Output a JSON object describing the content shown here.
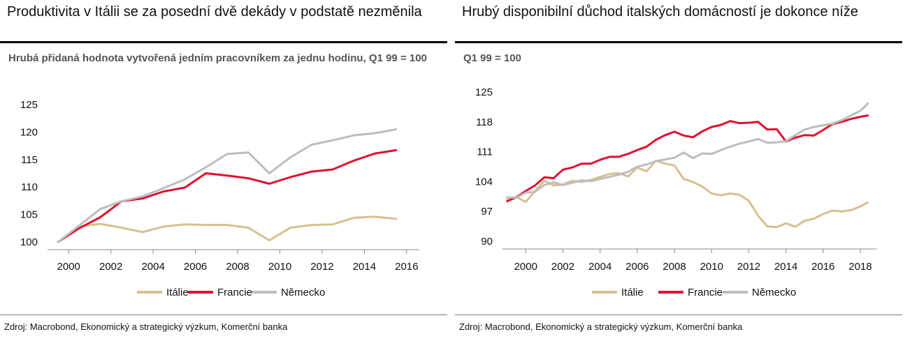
{
  "panels": [
    {
      "title": "Produktivita v Itálii se za posední dvě dekády v podstatě nezměnila",
      "subtitle": "Hrubá přidaná hodnota vytvořená jedním pracovníkem za jednu hodinu, Q1 99 = 100",
      "source": "Zdroj: Macrobond, Ekonomický a strategický výzkum, Komerční banka"
    },
    {
      "title": "Hrubý disponibilní důchod italských domácností je dokonce níže",
      "subtitle": "Q1 99 = 100",
      "source": "Zdroj: Macrobond, Ekonomický a strategický výzkum, Komerční banka"
    }
  ],
  "colors": {
    "italie": "#d6c08f",
    "francie": "#e0102f",
    "nemecko": "#bdbdbd"
  },
  "chart_data": [
    {
      "type": "line",
      "ylim": [
        100,
        125
      ],
      "xlim": [
        1999,
        2016.6
      ],
      "yticks": [
        100,
        105,
        110,
        115,
        120,
        125
      ],
      "xticks": [
        2000,
        2002,
        2004,
        2006,
        2008,
        2010,
        2012,
        2014,
        2016
      ],
      "legend_position": "bottom",
      "series": [
        {
          "name": "Itálie",
          "color": "#d6c08f",
          "x": [
            1999.5,
            2000.5,
            2001.5,
            2002.5,
            2003.5,
            2004.5,
            2005.5,
            2006.5,
            2007.5,
            2008.5,
            2009.5,
            2010.5,
            2011.5,
            2012.5,
            2013.5,
            2014.5,
            2015.5
          ],
          "y": [
            100,
            102.8,
            103.3,
            102.6,
            101.8,
            102.8,
            103.2,
            103.1,
            103.1,
            102.6,
            100.3,
            102.6,
            103.1,
            103.2,
            104.4,
            104.6,
            104.2
          ]
        },
        {
          "name": "Francie",
          "color": "#e0102f",
          "x": [
            1999.5,
            2000.5,
            2001.5,
            2002.5,
            2003.5,
            2004.5,
            2005.5,
            2006.5,
            2007.5,
            2008.5,
            2009.5,
            2010.5,
            2011.5,
            2012.5,
            2013.5,
            2014.5,
            2015.5
          ],
          "y": [
            100,
            102.5,
            104.5,
            107.4,
            107.9,
            109.2,
            109.9,
            112.5,
            112.1,
            111.6,
            110.6,
            111.8,
            112.8,
            113.2,
            114.8,
            116.1,
            116.7
          ]
        },
        {
          "name": "Německo",
          "color": "#bdbdbd",
          "x": [
            1999.5,
            2000.5,
            2001.5,
            2002.5,
            2003.5,
            2004.5,
            2005.5,
            2006.5,
            2007.5,
            2008.5,
            2009.5,
            2010.5,
            2011.5,
            2012.5,
            2013.5,
            2014.5,
            2015.5
          ],
          "y": [
            100,
            103.0,
            106.0,
            107.4,
            108.3,
            109.8,
            111.4,
            113.6,
            116.0,
            116.3,
            112.5,
            115.4,
            117.7,
            118.5,
            119.4,
            119.8,
            120.5
          ]
        }
      ]
    },
    {
      "type": "line",
      "ylim": [
        90,
        125
      ],
      "xlim": [
        1998.75,
        2018.9
      ],
      "yticks": [
        90,
        97,
        104,
        111,
        118,
        125
      ],
      "xticks": [
        2000,
        2002,
        2004,
        2006,
        2008,
        2010,
        2012,
        2014,
        2016,
        2018
      ],
      "legend_position": "bottom",
      "series": [
        {
          "name": "Itálie",
          "color": "#d6c08f",
          "x": [
            1999.0,
            1999.5,
            2000.0,
            2000.5,
            2001.0,
            2001.5,
            2002.0,
            2002.5,
            2003.0,
            2003.5,
            2004.0,
            2004.5,
            2005.0,
            2005.5,
            2006.0,
            2006.5,
            2007.0,
            2007.5,
            2008.0,
            2008.5,
            2009.0,
            2009.5,
            2010.0,
            2010.5,
            2011.0,
            2011.5,
            2012.0,
            2012.5,
            2013.0,
            2013.5,
            2014.0,
            2014.5,
            2015.0,
            2015.5,
            2016.0,
            2016.5,
            2017.0,
            2017.5,
            2018.0,
            2018.4
          ],
          "y": [
            100.0,
            100.4,
            99.2,
            101.8,
            104.2,
            103.1,
            103.3,
            104.2,
            103.9,
            104.4,
            105.1,
            105.8,
            106.0,
            105.2,
            107.3,
            106.4,
            108.9,
            108.2,
            107.8,
            104.6,
            103.9,
            102.8,
            101.2,
            100.8,
            101.2,
            100.9,
            99.5,
            96.0,
            93.5,
            93.3,
            94.2,
            93.4,
            94.8,
            95.3,
            96.4,
            97.2,
            97.0,
            97.3,
            98.2,
            99.1
          ]
        },
        {
          "name": "Francie",
          "color": "#e0102f",
          "x": [
            1999.0,
            1999.5,
            2000.0,
            2000.5,
            2001.0,
            2001.5,
            2002.0,
            2002.5,
            2003.0,
            2003.5,
            2004.0,
            2004.5,
            2005.0,
            2005.5,
            2006.0,
            2006.5,
            2007.0,
            2007.5,
            2008.0,
            2008.5,
            2009.0,
            2009.5,
            2010.0,
            2010.5,
            2011.0,
            2011.5,
            2012.0,
            2012.5,
            2013.0,
            2013.5,
            2014.0,
            2014.5,
            2015.0,
            2015.5,
            2016.0,
            2016.5,
            2017.0,
            2017.5,
            2018.0,
            2018.4
          ],
          "y": [
            99.4,
            100.3,
            101.8,
            103.1,
            105.0,
            104.8,
            106.8,
            107.3,
            108.2,
            108.2,
            109.1,
            109.8,
            109.8,
            110.5,
            111.4,
            112.2,
            113.8,
            114.9,
            115.7,
            114.8,
            114.4,
            115.8,
            116.8,
            117.3,
            118.2,
            117.7,
            117.8,
            118.0,
            116.2,
            116.3,
            113.4,
            114.3,
            114.9,
            114.8,
            116.1,
            117.5,
            118.0,
            118.7,
            119.2,
            119.5
          ]
        },
        {
          "name": "Německo",
          "color": "#bdbdbd",
          "x": [
            1999.0,
            1999.5,
            2000.0,
            2000.5,
            2001.0,
            2001.5,
            2002.0,
            2002.5,
            2003.0,
            2003.5,
            2004.0,
            2004.5,
            2005.0,
            2005.5,
            2006.0,
            2006.5,
            2007.0,
            2007.5,
            2008.0,
            2008.5,
            2009.0,
            2009.5,
            2010.0,
            2010.5,
            2011.0,
            2011.5,
            2012.0,
            2012.5,
            2013.0,
            2013.5,
            2014.0,
            2014.5,
            2015.0,
            2015.5,
            2016.0,
            2016.5,
            2017.0,
            2017.5,
            2018.0,
            2018.4
          ],
          "y": [
            100.3,
            100.2,
            101.4,
            101.6,
            103.2,
            103.8,
            103.2,
            103.7,
            104.3,
            104.1,
            104.6,
            105.1,
            105.6,
            106.3,
            107.5,
            108.0,
            108.8,
            109.2,
            109.6,
            110.8,
            109.5,
            110.6,
            110.5,
            111.4,
            112.2,
            112.9,
            113.4,
            114.0,
            113.1,
            113.2,
            113.5,
            114.9,
            116.2,
            116.8,
            117.2,
            117.6,
            118.4,
            119.5,
            120.6,
            122.3
          ]
        }
      ]
    }
  ]
}
